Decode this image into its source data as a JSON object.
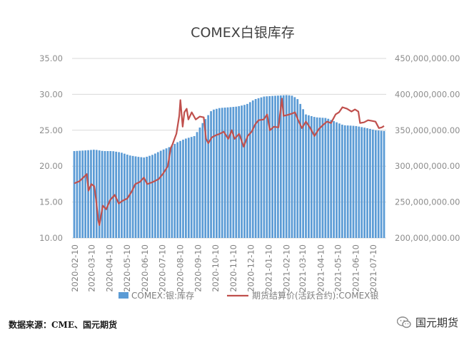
{
  "chart_data": {
    "type": "bar+line",
    "title": "COMEX白银库存",
    "left_axis": {
      "ticks": [
        "10.00",
        "15.00",
        "20.00",
        "25.00",
        "30.00",
        "35.00"
      ],
      "ylim": [
        10,
        35
      ]
    },
    "right_axis": {
      "ticks": [
        "200,000,000.00",
        "250,000,000.00",
        "300,000,000.00",
        "350,000,000.00",
        "400,000,000.00",
        "450,000,000.00"
      ],
      "ylim": [
        200000000,
        450000000
      ]
    },
    "x_ticks": [
      "2020-02-10",
      "2020-03-10",
      "2020-04-10",
      "2020-05-10",
      "2020-06-10",
      "2020-07-10",
      "2020-08-10",
      "2020-09-10",
      "2020-10-10",
      "2020-11-10",
      "2020-12-10",
      "2021-01-10",
      "2021-02-10",
      "2021-03-10",
      "2021-04-10",
      "2021-05-10",
      "2021-06-10",
      "2021-07-10"
    ],
    "date_range": [
      "2020-02-03",
      "2021-07-30"
    ],
    "series": [
      {
        "name": "COMEX:银:库存",
        "kind": "bar",
        "axis": "right",
        "color": "#5b9bd5",
        "points": [
          [
            "2020-02-03",
            321000000
          ],
          [
            "2020-02-24",
            322000000
          ],
          [
            "2020-03-10",
            323000000
          ],
          [
            "2020-03-25",
            321000000
          ],
          [
            "2020-04-10",
            321000000
          ],
          [
            "2020-04-25",
            319000000
          ],
          [
            "2020-05-10",
            315000000
          ],
          [
            "2020-05-25",
            313000000
          ],
          [
            "2020-06-05",
            312000000
          ],
          [
            "2020-06-20",
            316000000
          ],
          [
            "2020-07-05",
            322000000
          ],
          [
            "2020-07-20",
            327000000
          ],
          [
            "2020-08-01",
            333000000
          ],
          [
            "2020-08-15",
            338000000
          ],
          [
            "2020-09-01",
            342000000
          ],
          [
            "2020-09-15",
            360000000
          ],
          [
            "2020-10-01",
            378000000
          ],
          [
            "2020-10-15",
            381000000
          ],
          [
            "2020-11-01",
            382000000
          ],
          [
            "2020-11-15",
            383000000
          ],
          [
            "2020-12-01",
            386000000
          ],
          [
            "2020-12-15",
            393000000
          ],
          [
            "2021-01-01",
            397000000
          ],
          [
            "2021-01-20",
            398000000
          ],
          [
            "2021-02-10",
            399000000
          ],
          [
            "2021-02-20",
            398000000
          ],
          [
            "2021-03-01",
            393000000
          ],
          [
            "2021-03-15",
            372000000
          ],
          [
            "2021-04-01",
            368000000
          ],
          [
            "2021-04-20",
            367000000
          ],
          [
            "2021-05-05",
            362000000
          ],
          [
            "2021-05-20",
            357000000
          ],
          [
            "2021-06-10",
            356000000
          ],
          [
            "2021-06-30",
            353000000
          ],
          [
            "2021-07-15",
            350000000
          ],
          [
            "2021-07-30",
            349000000
          ]
        ]
      },
      {
        "name": "期货结算价(活跃合约):COMEX银",
        "kind": "line",
        "axis": "left",
        "color": "#c0504d",
        "points": [
          [
            "2020-02-03",
            17.6
          ],
          [
            "2020-02-12",
            17.9
          ],
          [
            "2020-02-20",
            18.5
          ],
          [
            "2020-02-25",
            18.9
          ],
          [
            "2020-02-28",
            16.6
          ],
          [
            "2020-03-04",
            17.5
          ],
          [
            "2020-03-09",
            17.2
          ],
          [
            "2020-03-12",
            15.5
          ],
          [
            "2020-03-16",
            12.5
          ],
          [
            "2020-03-18",
            11.8
          ],
          [
            "2020-03-24",
            14.5
          ],
          [
            "2020-03-30",
            14.0
          ],
          [
            "2020-04-06",
            15.3
          ],
          [
            "2020-04-14",
            16.0
          ],
          [
            "2020-04-21",
            14.8
          ],
          [
            "2020-04-28",
            15.2
          ],
          [
            "2020-05-06",
            15.5
          ],
          [
            "2020-05-14",
            16.5
          ],
          [
            "2020-05-20",
            17.5
          ],
          [
            "2020-05-28",
            17.8
          ],
          [
            "2020-06-04",
            18.4
          ],
          [
            "2020-06-10",
            17.5
          ],
          [
            "2020-06-20",
            17.8
          ],
          [
            "2020-06-30",
            18.2
          ],
          [
            "2020-07-08",
            19.0
          ],
          [
            "2020-07-16",
            20.0
          ],
          [
            "2020-07-21",
            22.5
          ],
          [
            "2020-07-24",
            23.0
          ],
          [
            "2020-07-31",
            24.5
          ],
          [
            "2020-08-05",
            27.0
          ],
          [
            "2020-08-07",
            29.2
          ],
          [
            "2020-08-11",
            25.5
          ],
          [
            "2020-08-14",
            27.5
          ],
          [
            "2020-08-18",
            28.0
          ],
          [
            "2020-08-21",
            26.5
          ],
          [
            "2020-08-27",
            27.5
          ],
          [
            "2020-09-03",
            26.5
          ],
          [
            "2020-09-10",
            26.9
          ],
          [
            "2020-09-17",
            26.8
          ],
          [
            "2020-09-21",
            23.8
          ],
          [
            "2020-09-25",
            23.2
          ],
          [
            "2020-10-01",
            24.0
          ],
          [
            "2020-10-08",
            24.3
          ],
          [
            "2020-10-15",
            24.5
          ],
          [
            "2020-10-22",
            24.8
          ],
          [
            "2020-10-30",
            23.8
          ],
          [
            "2020-11-05",
            25.0
          ],
          [
            "2020-11-10",
            23.8
          ],
          [
            "2020-11-18",
            24.5
          ],
          [
            "2020-11-26",
            22.7
          ],
          [
            "2020-12-03",
            24.2
          ],
          [
            "2020-12-10",
            24.8
          ],
          [
            "2020-12-16",
            25.8
          ],
          [
            "2020-12-22",
            26.4
          ],
          [
            "2020-12-31",
            26.5
          ],
          [
            "2021-01-06",
            27.2
          ],
          [
            "2021-01-11",
            25.0
          ],
          [
            "2021-01-18",
            25.5
          ],
          [
            "2021-01-26",
            25.4
          ],
          [
            "2021-02-01",
            29.4
          ],
          [
            "2021-02-04",
            27.0
          ],
          [
            "2021-02-10",
            27.1
          ],
          [
            "2021-02-18",
            27.3
          ],
          [
            "2021-02-24",
            27.5
          ],
          [
            "2021-03-01",
            26.5
          ],
          [
            "2021-03-08",
            25.3
          ],
          [
            "2021-03-15",
            26.2
          ],
          [
            "2021-03-22",
            25.4
          ],
          [
            "2021-03-30",
            24.2
          ],
          [
            "2021-04-07",
            25.2
          ],
          [
            "2021-04-15",
            25.8
          ],
          [
            "2021-04-21",
            26.2
          ],
          [
            "2021-04-28",
            26.0
          ],
          [
            "2021-05-06",
            27.2
          ],
          [
            "2021-05-12",
            27.5
          ],
          [
            "2021-05-18",
            28.2
          ],
          [
            "2021-05-26",
            28.0
          ],
          [
            "2021-06-03",
            27.6
          ],
          [
            "2021-06-09",
            27.9
          ],
          [
            "2021-06-15",
            27.6
          ],
          [
            "2021-06-18",
            26.0
          ],
          [
            "2021-06-25",
            26.1
          ],
          [
            "2021-07-02",
            26.4
          ],
          [
            "2021-07-09",
            26.3
          ],
          [
            "2021-07-15",
            26.2
          ],
          [
            "2021-07-21",
            25.3
          ],
          [
            "2021-07-26",
            25.4
          ],
          [
            "2021-07-30",
            25.6
          ]
        ]
      }
    ]
  },
  "footnote": "数据来源：CME、国元期货",
  "watermark": "国元期货"
}
